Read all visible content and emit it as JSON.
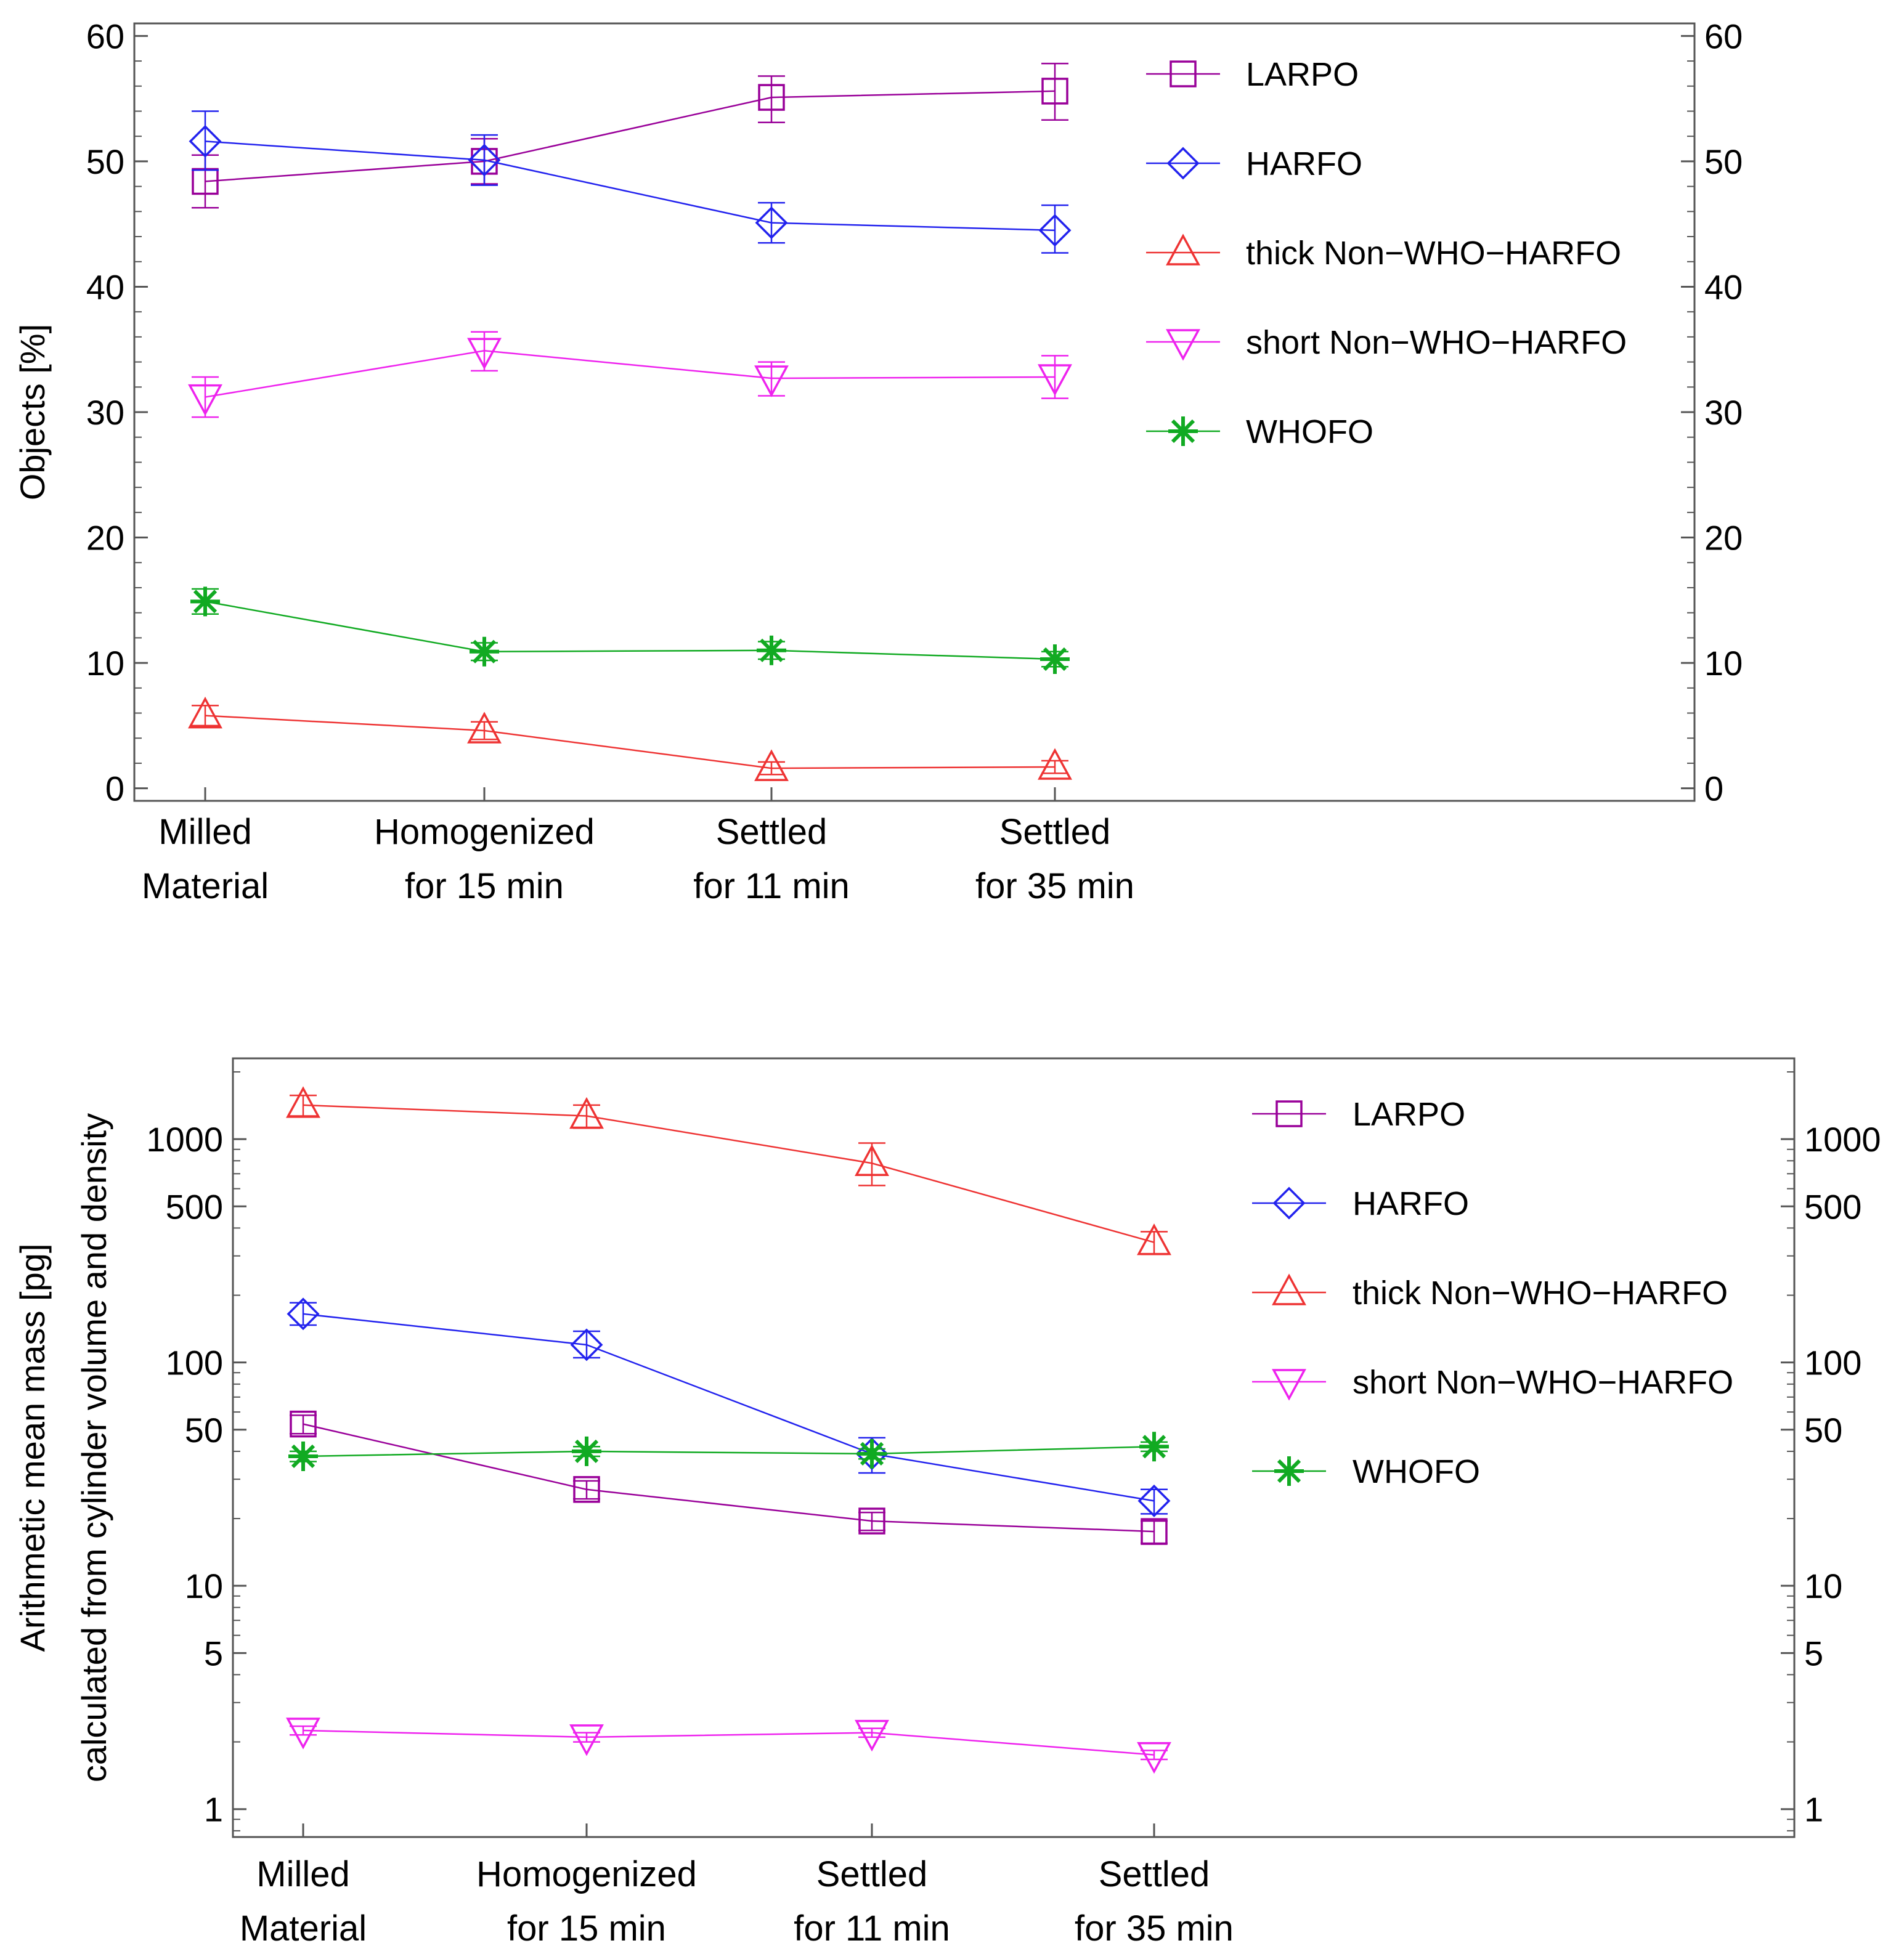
{
  "chart_data": [
    {
      "type": "line",
      "scale": "linear",
      "title": "",
      "xlabel": "",
      "ylabel": "Objects [%]",
      "ylim": [
        -1,
        61
      ],
      "yticks": [
        0,
        10,
        20,
        30,
        40,
        50,
        60
      ],
      "ytick_labels": [
        "0",
        "10",
        "20",
        "30",
        "40",
        "50",
        "60"
      ],
      "right_axis_mirror": true,
      "legend_position": "top-right",
      "categories": [
        [
          "Milled",
          "Material"
        ],
        [
          "Homogenized",
          "for 15 min"
        ],
        [
          "Settled",
          "for 11 min"
        ],
        [
          "Settled",
          "for 35 min"
        ]
      ],
      "series": [
        {
          "name": "LARPO",
          "color": "#990099",
          "marker": "square",
          "values": [
            48.4,
            50.0,
            55.1,
            55.6
          ],
          "err_low": [
            2.1,
            1.8,
            2.0,
            2.3
          ],
          "err_high": [
            2.1,
            1.8,
            1.7,
            2.2
          ]
        },
        {
          "name": "HARFO",
          "color": "#2222ee",
          "marker": "diamond",
          "values": [
            51.6,
            50.1,
            45.1,
            44.5
          ],
          "err_low": [
            2.3,
            2.0,
            1.6,
            1.8
          ],
          "err_high": [
            2.4,
            2.0,
            1.6,
            2.0
          ]
        },
        {
          "name": "thick Non−WHO−HARFO",
          "color": "#ee3333",
          "marker": "triangle-up",
          "values": [
            5.8,
            4.6,
            1.6,
            1.7
          ],
          "err_low": [
            0.8,
            0.7,
            0.5,
            0.5
          ],
          "err_high": [
            0.8,
            0.7,
            0.5,
            0.5
          ]
        },
        {
          "name": "short Non−WHO−HARFO",
          "color": "#ee22ee",
          "marker": "triangle-down",
          "values": [
            31.2,
            34.9,
            32.7,
            32.8
          ],
          "err_low": [
            1.6,
            1.6,
            1.4,
            1.7
          ],
          "err_high": [
            1.6,
            1.5,
            1.3,
            1.7
          ]
        },
        {
          "name": "WHOFO",
          "color": "#11aa22",
          "marker": "asterisk",
          "values": [
            14.9,
            10.9,
            11.0,
            10.3
          ],
          "err_low": [
            1.0,
            0.7,
            0.7,
            0.6
          ],
          "err_high": [
            1.0,
            0.7,
            0.7,
            0.6
          ]
        }
      ]
    },
    {
      "type": "line",
      "scale": "log",
      "title": "",
      "xlabel": "",
      "ylabel_lines": [
        "Arithmetic mean mass [pg]",
        "calculated from cylinder volume and density"
      ],
      "ylim": [
        0.75,
        2300
      ],
      "yticks": [
        1,
        5,
        10,
        50,
        100,
        500,
        1000
      ],
      "ytick_labels": [
        "1",
        "5",
        "10",
        "50",
        "100",
        "500",
        "1000"
      ],
      "right_axis_mirror": true,
      "legend_position": "top-right",
      "categories": [
        [
          "Milled",
          "Material"
        ],
        [
          "Homogenized",
          "for 15 min"
        ],
        [
          "Settled",
          "for 11 min"
        ],
        [
          "Settled",
          "for 35 min"
        ]
      ],
      "series": [
        {
          "name": "LARPO",
          "color": "#990099",
          "marker": "square",
          "values": [
            53,
            27,
            19.5,
            17.5
          ],
          "err_low": [
            5,
            2.5,
            1.8,
            2
          ],
          "err_high": [
            5,
            2.5,
            1.8,
            2
          ]
        },
        {
          "name": "HARFO",
          "color": "#2222ee",
          "marker": "diamond",
          "values": [
            165,
            120,
            39,
            24
          ],
          "err_low": [
            18,
            15,
            7,
            3
          ],
          "err_high": [
            20,
            18,
            7,
            3
          ]
        },
        {
          "name": "thick Non−WHO−HARFO",
          "color": "#ee3333",
          "marker": "triangle-up",
          "values": [
            1420,
            1270,
            780,
            345
          ],
          "err_low": [
            150,
            150,
            160,
            40
          ],
          "err_high": [
            150,
            150,
            180,
            40
          ]
        },
        {
          "name": "short Non−WHO−HARFO",
          "color": "#ee22ee",
          "marker": "triangle-down",
          "values": [
            2.25,
            2.1,
            2.2,
            1.75
          ],
          "err_low": [
            0.1,
            0.1,
            0.1,
            0.08
          ],
          "err_high": [
            0.1,
            0.1,
            0.1,
            0.08
          ]
        },
        {
          "name": "WHOFO",
          "color": "#11aa22",
          "marker": "asterisk",
          "values": [
            38,
            40,
            39,
            42
          ],
          "err_low": [
            2,
            2,
            2,
            2
          ],
          "err_high": [
            2,
            2,
            2,
            2
          ]
        }
      ]
    }
  ]
}
